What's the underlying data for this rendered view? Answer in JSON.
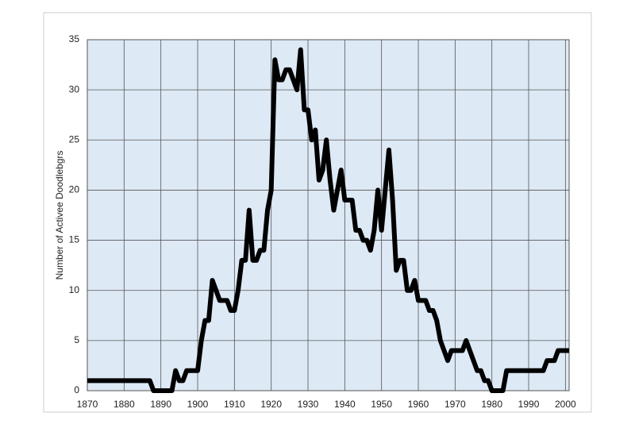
{
  "chart_data": {
    "type": "line",
    "y_label": "Number of Activee Doodlebgrs",
    "x": [
      1870,
      1887,
      1888,
      1893,
      1894,
      1895,
      1896,
      1897,
      1900,
      1901,
      1902,
      1903,
      1904,
      1905,
      1906,
      1908,
      1909,
      1910,
      1911,
      1912,
      1913,
      1914,
      1915,
      1916,
      1917,
      1918,
      1919,
      1920,
      1921,
      1922,
      1923,
      1924,
      1925,
      1926,
      1927,
      1928,
      1929,
      1930,
      1931,
      1932,
      1933,
      1934,
      1935,
      1936,
      1937,
      1938,
      1939,
      1940,
      1941,
      1942,
      1943,
      1944,
      1945,
      1946,
      1947,
      1948,
      1949,
      1950,
      1951,
      1952,
      1953,
      1954,
      1955,
      1956,
      1957,
      1958,
      1959,
      1960,
      1961,
      1962,
      1963,
      1964,
      1965,
      1966,
      1967,
      1968,
      1969,
      1970,
      1971,
      1972,
      1973,
      1974,
      1975,
      1976,
      1977,
      1978,
      1979,
      1980,
      1983,
      1984,
      1993,
      1994,
      1995,
      1996,
      1997,
      1998,
      2001
    ],
    "series": [
      {
        "color": "#000000",
        "values": [
          1,
          1,
          0,
          0,
          2,
          1,
          1,
          2,
          2,
          5,
          7,
          7,
          11,
          10,
          9,
          9,
          8,
          8,
          10,
          13,
          13,
          18,
          13,
          13,
          14,
          14,
          18,
          20,
          33,
          31,
          31,
          32,
          32,
          31,
          30,
          34,
          28,
          28,
          25,
          26,
          21,
          22,
          25,
          21,
          18,
          20,
          22,
          19,
          19,
          19,
          16,
          16,
          15,
          15,
          14,
          16,
          20,
          16,
          20,
          24,
          19,
          12,
          13,
          13,
          10,
          10,
          11,
          9,
          9,
          9,
          8,
          8,
          7,
          5,
          4,
          3,
          4,
          4,
          4,
          4,
          5,
          4,
          3,
          2,
          2,
          1,
          1,
          0,
          0,
          2,
          2,
          2,
          3,
          3,
          3,
          4,
          4
        ]
      }
    ],
    "xlim": [
      1870,
      2001
    ],
    "ylim": [
      0,
      35
    ],
    "xticks": [
      1870,
      1880,
      1890,
      1900,
      1910,
      1920,
      1930,
      1940,
      1950,
      1960,
      1970,
      1980,
      1990,
      2000
    ],
    "yticks": [
      0,
      5,
      10,
      15,
      20,
      25,
      30,
      35
    ],
    "grid": true
  }
}
